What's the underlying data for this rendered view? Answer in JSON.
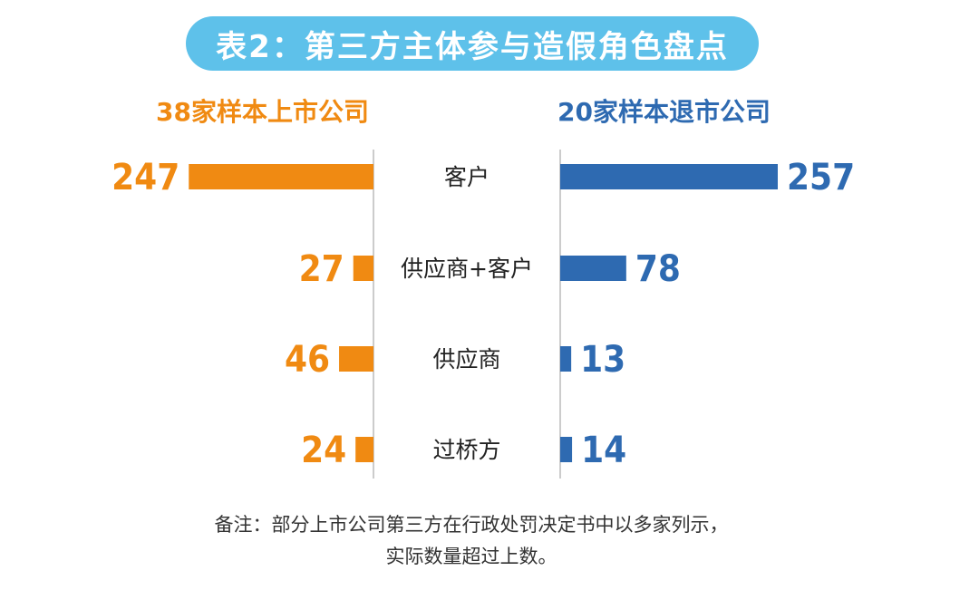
{
  "title": "表2：第三方主体参与造假角色盘点",
  "left_header": "38家样本上市公司",
  "right_header": "20家样本退市公司",
  "note_line1": "备注：部分上市公司第三方在行政处罚决定书中以多家列示，",
  "note_line2": "实际数量超过上数。",
  "colors": {
    "title_bg": "#5ec1ea",
    "left": "#f08a12",
    "right": "#2e6ab1",
    "axis": "#bbbbbb"
  },
  "chart_data": {
    "type": "bar",
    "orientation": "horizontal-butterfly",
    "categories": [
      "客户",
      "供应商+客户",
      "供应商",
      "过桥方"
    ],
    "series": [
      {
        "name": "38家样本上市公司",
        "values": [
          247,
          27,
          46,
          24
        ]
      },
      {
        "name": "20家样本退市公司",
        "values": [
          257,
          78,
          13,
          14
        ]
      }
    ]
  }
}
